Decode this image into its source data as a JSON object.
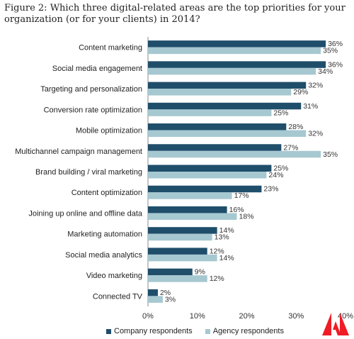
{
  "title": "Figure 2: Which three digital-related areas are the top priorities for your organization (or for your clients) in 2014?",
  "colors": {
    "company": "#1f4e6b",
    "agency": "#a6c8d1",
    "logo": "#ee1c25"
  },
  "chart_data": {
    "type": "bar",
    "orientation": "horizontal",
    "title": "Figure 2: Which three digital-related areas are the top priorities for your organization (or for your clients) in 2014?",
    "categories": [
      "Content marketing",
      "Social media engagement",
      "Targeting and personalization",
      "Conversion rate optimization",
      "Mobile optimization",
      "Multichannel campaign management",
      "Brand building / viral marketing",
      "Content optimization",
      "Joining up online and offline data",
      "Marketing automation",
      "Social media analytics",
      "Video marketing",
      "Connected TV"
    ],
    "series": [
      {
        "name": "Company respondents",
        "values": [
          36,
          36,
          32,
          31,
          28,
          27,
          25,
          23,
          16,
          14,
          12,
          9,
          2
        ]
      },
      {
        "name": "Agency respondents",
        "values": [
          35,
          34,
          29,
          25,
          32,
          35,
          24,
          17,
          18,
          13,
          14,
          12,
          3
        ]
      }
    ],
    "xlim": [
      0,
      40
    ],
    "xticks": [
      "0%",
      "10%",
      "20%",
      "30%",
      "40%"
    ],
    "xlabel": "",
    "ylabel": "",
    "grid": false,
    "legend": "bottom"
  }
}
